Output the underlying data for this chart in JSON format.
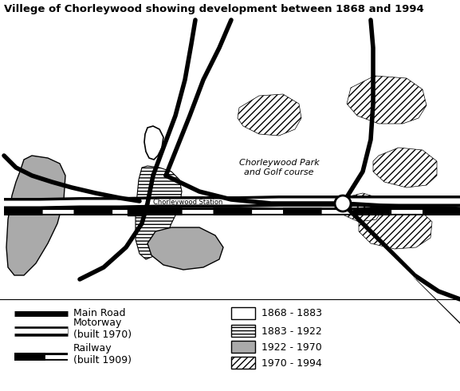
{
  "title": "Villege of Chorleywood showing development between 1868 and 1994",
  "title_fontsize": 9.5,
  "bg_color": "#ffffff",
  "legend": {
    "main_road_label": "Main Road",
    "motorway_label": "Motorway\n(built 1970)",
    "railway_label": "Railway\n(built 1909)",
    "period1_label": "1868 - 1883",
    "period2_label": "1883 - 1922",
    "period3_label": "1922 - 1970",
    "period4_label": "1970 - 1994"
  },
  "map_label_park": "Chorleywood Park\nand Golf course",
  "map_label_station": "Chorleywood Station",
  "grey_color": "#aaaaaa",
  "hatch_diag": "////",
  "hatch_horiz": "----"
}
